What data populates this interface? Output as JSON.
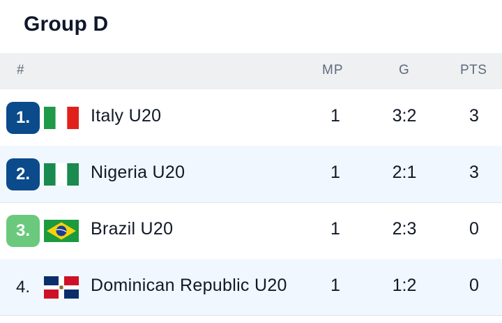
{
  "group_title": "Group D",
  "columns": {
    "rank": "#",
    "mp": "MP",
    "g": "G",
    "pts": "PTS"
  },
  "colors": {
    "qualified": "#0b4a8b",
    "third": "#6ac97c",
    "header_bg": "#eef0f2",
    "alt_row": "#f0f7fe"
  },
  "rows": [
    {
      "rank": "1.",
      "flag": "italy-flag-icon",
      "team": "Italy U20",
      "mp": "1",
      "g": "3:2",
      "pts": "3"
    },
    {
      "rank": "2.",
      "flag": "nigeria-flag-icon",
      "team": "Nigeria U20",
      "mp": "1",
      "g": "2:1",
      "pts": "3"
    },
    {
      "rank": "3.",
      "flag": "brazil-flag-icon",
      "team": "Brazil U20",
      "mp": "1",
      "g": "2:3",
      "pts": "0"
    },
    {
      "rank": "4.",
      "flag": "dominican-republic-flag-icon",
      "team": "Dominican Republic U20",
      "mp": "1",
      "g": "1:2",
      "pts": "0"
    }
  ]
}
